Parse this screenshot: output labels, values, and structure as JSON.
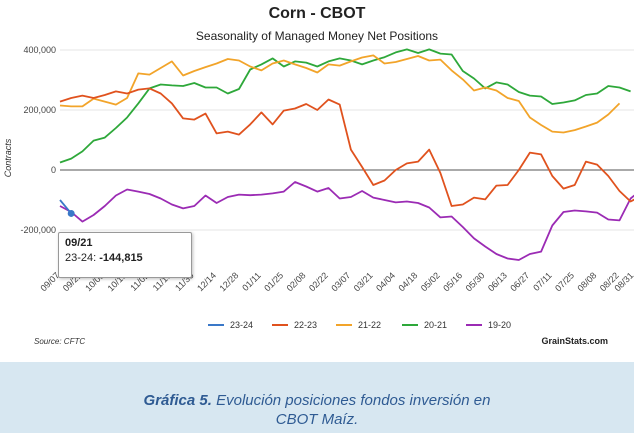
{
  "header": {
    "title": "Corn - CBOT",
    "subtitle": "Seasonality of Managed Money Net Positions"
  },
  "footer": {
    "source": "Source: CFTC",
    "credit": "GrainStats.com"
  },
  "caption": {
    "lead": "Gráfica 5.",
    "line1": "Evolución posiciones fondos inversión en",
    "line2": "CBOT Maíz."
  },
  "tooltip": {
    "date": "09/21",
    "series": "23-24: ",
    "value": "-144,815"
  },
  "chart_data": {
    "type": "line",
    "title": "Seasonality of Managed Money Net Positions",
    "xlabel": "",
    "ylabel": "Contracts",
    "ylim": [
      -320000,
      420000
    ],
    "y_ticks": [
      -200000,
      0,
      200000,
      400000
    ],
    "y_tick_labels": [
      "-200,000",
      "0",
      "200,000",
      "400,000"
    ],
    "x_tick_labels": [
      "09/07",
      "09/21",
      "10/05",
      "10/19",
      "11/02",
      "11/16",
      "11/30",
      "12/14",
      "12/28",
      "01/11",
      "01/25",
      "02/08",
      "02/22",
      "03/07",
      "03/21",
      "04/04",
      "04/18",
      "05/02",
      "05/16",
      "05/30",
      "06/13",
      "06/27",
      "07/11",
      "07/25",
      "08/08",
      "08/22",
      "08/31"
    ],
    "x_tick_positions": [
      0,
      2,
      4,
      6,
      8,
      10,
      12,
      14,
      16,
      18,
      20,
      22,
      24,
      26,
      28,
      30,
      32,
      34,
      36,
      38,
      40,
      42,
      44,
      46,
      48,
      50,
      51.3
    ],
    "grid": "horizontal",
    "legend_position": "bottom",
    "zero_line": true,
    "series": [
      {
        "name": "23-24",
        "color": "#3a78c8",
        "values": [
          -100000,
          -144815
        ]
      },
      {
        "name": "22-23",
        "color": "#e0521e",
        "values": [
          228000,
          240000,
          248000,
          240000,
          250000,
          262000,
          255000,
          268000,
          272000,
          255000,
          222000,
          172000,
          168000,
          188000,
          122000,
          128000,
          118000,
          152000,
          192000,
          152000,
          198000,
          205000,
          220000,
          200000,
          235000,
          218000,
          68000,
          10000,
          -50000,
          -35000,
          0,
          22000,
          28000,
          68000,
          -10000,
          -120000,
          -115000,
          -92000,
          -98000,
          -52000,
          -50000,
          0,
          58000,
          52000,
          -20000,
          -62000,
          -50000,
          28000,
          18000,
          -20000,
          -70000,
          -105000,
          -85000
        ]
      },
      {
        "name": "21-22",
        "color": "#f2a42a",
        "values": [
          215000,
          212000,
          212000,
          238000,
          228000,
          218000,
          240000,
          322000,
          318000,
          340000,
          362000,
          315000,
          330000,
          343000,
          355000,
          370000,
          365000,
          345000,
          332000,
          355000,
          365000,
          352000,
          340000,
          325000,
          352000,
          348000,
          362000,
          375000,
          382000,
          355000,
          360000,
          370000,
          380000,
          365000,
          368000,
          332000,
          302000,
          265000,
          275000,
          265000,
          240000,
          230000,
          175000,
          150000,
          128000,
          125000,
          133000,
          145000,
          158000,
          185000,
          222000
        ]
      },
      {
        "name": "20-21",
        "color": "#2ea83a",
        "values": [
          25000,
          38000,
          62000,
          98000,
          108000,
          140000,
          175000,
          222000,
          272000,
          285000,
          282000,
          280000,
          290000,
          275000,
          275000,
          255000,
          270000,
          335000,
          352000,
          372000,
          345000,
          362000,
          358000,
          345000,
          362000,
          372000,
          365000,
          352000,
          365000,
          376000,
          392000,
          402000,
          390000,
          402000,
          388000,
          385000,
          330000,
          305000,
          272000,
          292000,
          285000,
          260000,
          248000,
          245000,
          220000,
          225000,
          232000,
          250000,
          255000,
          280000,
          275000,
          262000
        ]
      },
      {
        "name": "19-20",
        "color": "#9b2bb4",
        "values": [
          -120000,
          -140000,
          -172000,
          -150000,
          -120000,
          -85000,
          -65000,
          -72000,
          -80000,
          -95000,
          -115000,
          -128000,
          -120000,
          -85000,
          -110000,
          -90000,
          -82000,
          -84000,
          -82000,
          -78000,
          -72000,
          -40000,
          -55000,
          -72000,
          -60000,
          -95000,
          -90000,
          -70000,
          -92000,
          -100000,
          -108000,
          -105000,
          -110000,
          -125000,
          -158000,
          -155000,
          -190000,
          -228000,
          -255000,
          -280000,
          -295000,
          -300000,
          -280000,
          -272000,
          -185000,
          -140000,
          -135000,
          -138000,
          -142000,
          -165000,
          -168000,
          -95000,
          -65000
        ]
      }
    ]
  }
}
